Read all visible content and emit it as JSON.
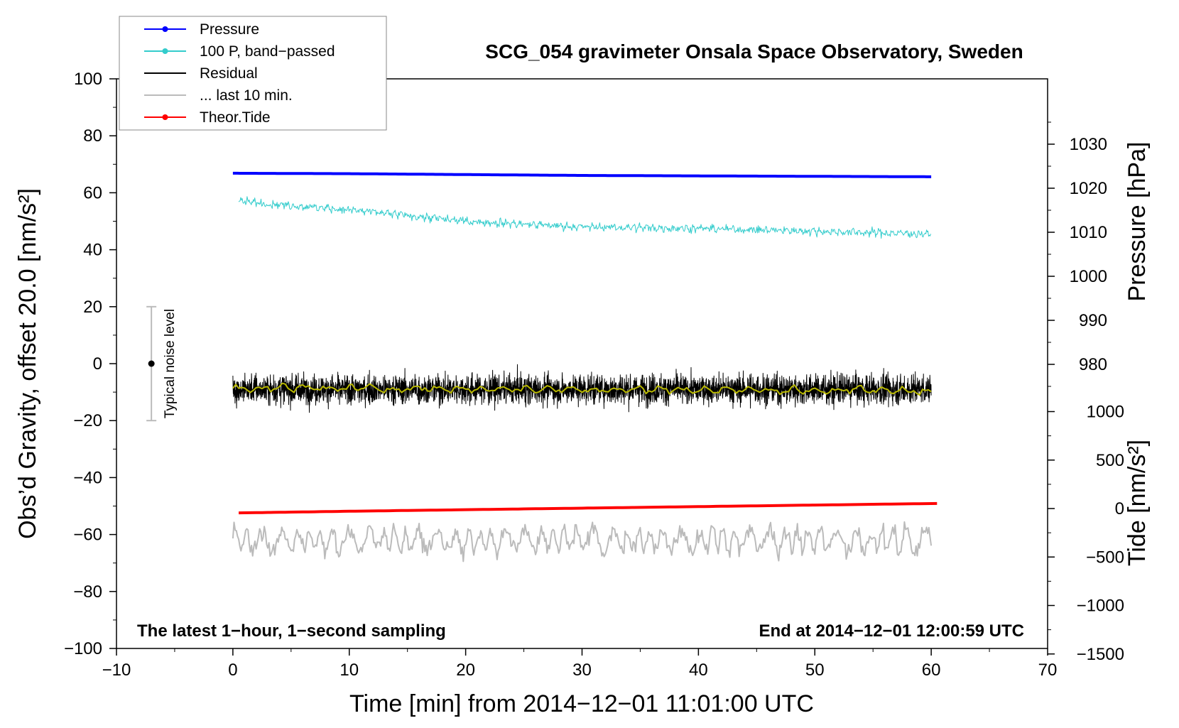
{
  "chart_data": {
    "type": "line",
    "title": "SCG_054 gravimeter Onsala Space Observatory, Sweden",
    "xlabel": "Time [min] from 2014−12−01 11:01:00 UTC",
    "ylabel_left": "Obs’d Gravity, offset 20.0 [nm/s²]",
    "ylabel_right_pressure": "Pressure [hPa]",
    "ylabel_right_tide": "Tide [nm/s²]",
    "footer_left": "The latest 1−hour, 1−second sampling",
    "footer_right": "End at 2014−12−01 12:00:59 UTC",
    "xlim": [
      -10,
      70
    ],
    "ylim_left": [
      -100,
      100
    ],
    "x_ticks": [
      -10,
      0,
      10,
      20,
      30,
      40,
      50,
      60,
      70
    ],
    "x_tick_labels": [
      "−10",
      "0",
      "10",
      "20",
      "30",
      "40",
      "50",
      "60",
      "70"
    ],
    "y_ticks_left": [
      -100,
      -80,
      -60,
      -40,
      -20,
      0,
      20,
      40,
      60,
      80,
      100
    ],
    "y_tick_labels_left": [
      "−100",
      "−80",
      "−60",
      "−40",
      "−20",
      "0",
      "20",
      "40",
      "60",
      "80",
      "100"
    ],
    "pressure_ticks": [
      980,
      990,
      1000,
      1010,
      1020,
      1030
    ],
    "pressure_tick_labels": [
      "980",
      "990",
      "1000",
      "1010",
      "1020",
      "1030"
    ],
    "tide_ticks": [
      -1500,
      -1000,
      -500,
      0,
      500,
      1000
    ],
    "tide_tick_labels": [
      "−1500",
      "−1000",
      "−500",
      "0",
      "500",
      "1000"
    ],
    "legend_position": "top-left",
    "series": [
      {
        "name": "Pressure",
        "color": "#0000ff",
        "axis": "pressure",
        "style": "line-dot",
        "x": [
          0,
          10,
          20,
          30,
          40,
          50,
          60
        ],
        "y": [
          1023.4,
          1023.3,
          1023.1,
          1022.9,
          1022.8,
          1022.7,
          1022.6
        ]
      },
      {
        "name": "100 P, band−passed",
        "color": "#33cccc",
        "axis": "gravity",
        "style": "line-dot",
        "x": [
          0.5,
          10,
          20,
          30,
          40,
          50,
          60
        ],
        "y": [
          57,
          54,
          50,
          48,
          47.5,
          46.5,
          45.5
        ]
      },
      {
        "name": "Residual",
        "color": "#000000",
        "axis": "gravity",
        "style": "line",
        "x": [
          0,
          10,
          20,
          30,
          40,
          50,
          60
        ],
        "y": [
          -9,
          -9,
          -9,
          -9,
          -9,
          -9,
          -9
        ]
      },
      {
        "name": "... last 10 min.",
        "color": "#bbbbbb",
        "axis": "gravity",
        "style": "line",
        "x": [
          0,
          10,
          20,
          30,
          40,
          50,
          60
        ],
        "y": [
          -62,
          -62,
          -62,
          -62,
          -62,
          -62,
          -62
        ]
      },
      {
        "name": "Theor.Tide",
        "color": "#ff0000",
        "axis": "tide",
        "style": "line-dot",
        "x": [
          0.5,
          10,
          20,
          30,
          40,
          50,
          60.5
        ],
        "y": [
          -45,
          -28,
          -12,
          4,
          20,
          36,
          52
        ]
      }
    ],
    "smoothed_residual": {
      "color": "#b8b800",
      "x": [
        0,
        60
      ],
      "y": [
        -8.5,
        -9.5
      ]
    },
    "noise_bar": {
      "label": "Typical noise level",
      "x": -7,
      "center": 0,
      "range": [
        -20,
        20
      ],
      "color": "#bbbbbb"
    }
  }
}
